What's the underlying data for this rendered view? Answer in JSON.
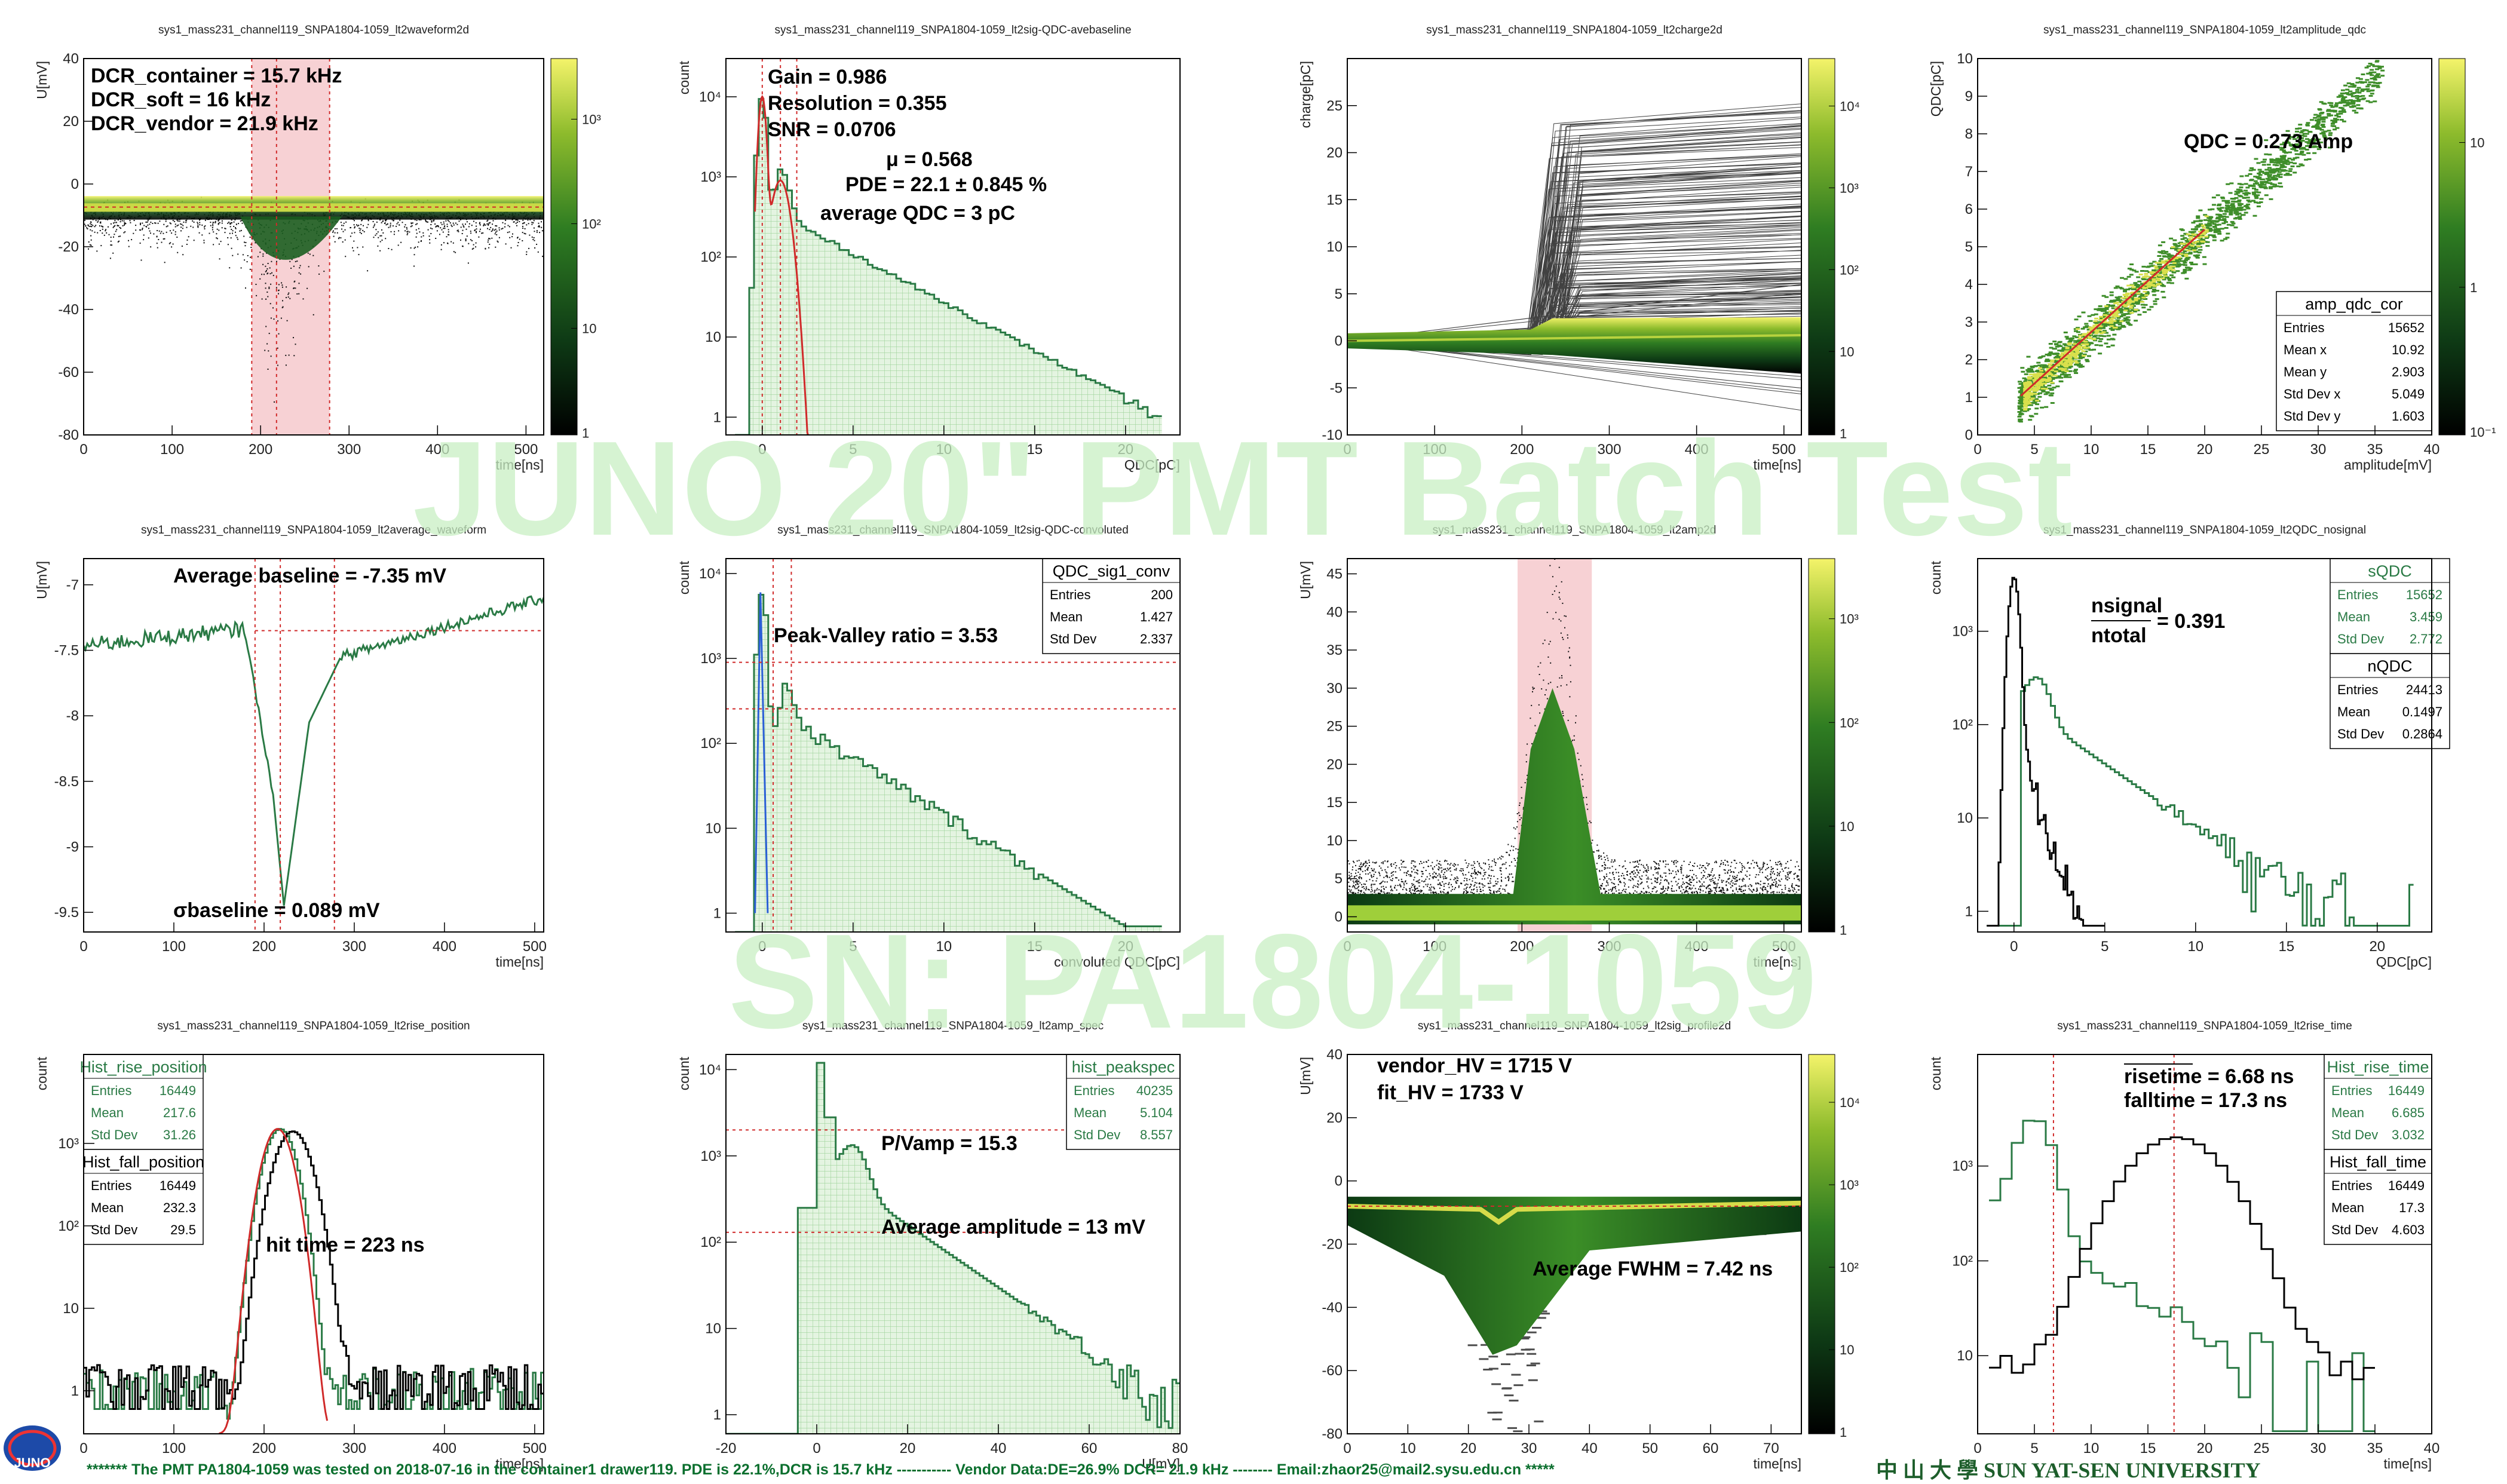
{
  "watermark": {
    "line1": "JUNO 20\" PMT Batch Test",
    "line2": "SN: PA1804-1059"
  },
  "footer": {
    "text": "******* The PMT PA1804-1059 was tested on 2018-07-16 in the container1 drawer119. PDE is  22.1%,DCR is 15.7 kHz ----------- Vendor Data:DE=26.9% DCR= 21.9 kHz  --------  Email:zhaor25@mail2.sysu.edu.cn *****",
    "university": "中 山 大 學  SUN YAT-SEN UNIVERSITY",
    "logo": "JUNO"
  },
  "colors": {
    "green": "#2a7a45",
    "red": "#d02a2a",
    "band": "#f6c9cc",
    "hist_fill": "#cfeacb"
  },
  "chart_data": [
    {
      "id": "p1",
      "type": "heatmap",
      "title": "sys1_mass231_channel119_SNPA1804-1059_lt2waveform2d",
      "xlabel": "time[ns]",
      "ylabel": "U[mV]",
      "xlim": [
        0,
        520
      ],
      "ylim": [
        -80,
        40
      ],
      "xticks": [
        0,
        100,
        200,
        300,
        400,
        500
      ],
      "yticks": [
        -80,
        -60,
        -40,
        -20,
        0,
        20,
        40
      ],
      "colorbar": [
        "1",
        "10",
        "10²",
        "10³"
      ],
      "annotations": [
        "DCR_container =  15.7 kHz",
        "DCR_soft =     16 kHz",
        "DCR_vendor =  21.9 kHz"
      ],
      "bands": [
        [
          190,
          278
        ]
      ],
      "vlines": [
        218
      ],
      "baseline": -7.35,
      "dip": {
        "center": 222,
        "depth": -38
      }
    },
    {
      "id": "p2",
      "type": "histogram",
      "title": "sys1_mass231_channel119_SNPA1804-1059_lt2sig-QDC-avebaseline",
      "xlabel": "QDC[pC]",
      "ylabel": "count",
      "xlim": [
        -2,
        23
      ],
      "ylim_log": [
        0.6,
        30000
      ],
      "log": true,
      "xticks": [
        0,
        5,
        10,
        15,
        20
      ],
      "yticks": [
        "1",
        "10",
        "10²",
        "10³",
        "10⁴"
      ],
      "annotations": [
        "Gain = 0.986",
        "Resolution = 0.355",
        "SNR = 0.0706",
        "μ = 0.568",
        "PDE =  22.1 ± 0.845 %",
        "average QDC =     3 pC"
      ],
      "pedestal_peak": 10000,
      "spe_peak": 1.0,
      "spe_height": 900,
      "vlines": [
        0,
        1.0,
        1.9
      ]
    },
    {
      "id": "p3",
      "type": "heatmap",
      "title": "sys1_mass231_channel119_SNPA1804-1059_lt2charge2d",
      "xlabel": "time[ns]",
      "ylabel": "charge[pC]",
      "xlim": [
        0,
        520
      ],
      "ylim": [
        -10,
        30
      ],
      "xticks": [
        0,
        100,
        200,
        300,
        400,
        500
      ],
      "yticks": [
        -10,
        -5,
        0,
        5,
        10,
        15,
        20,
        25
      ],
      "colorbar": [
        "1",
        "10",
        "10²",
        "10³",
        "10⁴"
      ]
    },
    {
      "id": "p4",
      "type": "scatter",
      "title": "sys1_mass231_channel119_SNPA1804-1059_lt2amplitude_qdc",
      "xlabel": "amplitude[mV]",
      "ylabel": "QDC[pC]",
      "xlim": [
        0,
        40
      ],
      "ylim": [
        0,
        10
      ],
      "xticks": [
        0,
        5,
        10,
        15,
        20,
        25,
        30,
        35,
        40
      ],
      "yticks": [
        0,
        1,
        2,
        3,
        4,
        5,
        6,
        7,
        8,
        9,
        10
      ],
      "colorbar": [
        "10⁻¹",
        "1",
        "10"
      ],
      "annotations": [
        "QDC = 0.273 Amp"
      ],
      "fit": {
        "slope": 0.273,
        "x0": 3.8,
        "x1": 20
      },
      "stats": {
        "title": "amp_qdc_cor",
        "rows": [
          [
            "Entries",
            "15652"
          ],
          [
            "Mean x",
            "10.92"
          ],
          [
            "Mean y",
            "2.903"
          ],
          [
            "Std Dev x",
            "5.049"
          ],
          [
            "Std Dev y",
            "1.603"
          ]
        ]
      }
    },
    {
      "id": "p5",
      "type": "line",
      "title": "sys1_mass231_channel119_SNPA1804-1059_lt2average_waveform",
      "xlabel": "time[ns]",
      "ylabel": "U[mV]",
      "xlim": [
        0,
        510
      ],
      "ylim": [
        -9.65,
        -6.8
      ],
      "xticks": [
        0,
        100,
        200,
        300,
        400,
        500
      ],
      "yticks": [
        -9.5,
        -9,
        -8.5,
        -8,
        -7.5,
        -7
      ],
      "ytick_labels": [
        "-9.5",
        "-9",
        "-8.5",
        "-8",
        "-7.5",
        "-7"
      ],
      "annotations": [
        "Average baseline = -7.35 mV",
        "σbaseline = 0.089 mV"
      ],
      "baseline": -7.35,
      "min": -9.45,
      "min_at": 222,
      "vlines": [
        190,
        218,
        278
      ]
    },
    {
      "id": "p6",
      "type": "histogram",
      "title": "sys1_mass231_channel119_SNPA1804-1059_lt2sig-QDC-convoluted",
      "xlabel": "convoluted QDC[pC]",
      "ylabel": "count",
      "xlim": [
        -2,
        23
      ],
      "ylim_log": [
        0.6,
        15000
      ],
      "log": true,
      "xticks": [
        0,
        5,
        10,
        15,
        20
      ],
      "yticks": [
        "1",
        "10",
        "10²",
        "10³",
        "10⁴"
      ],
      "annotations": [
        "Peak-Valley ratio =  3.53"
      ],
      "hlines": [
        900,
        255
      ],
      "stats": {
        "title": "QDC_sig1_conv",
        "rows": [
          [
            "Entries",
            "200"
          ],
          [
            "Mean",
            "1.427"
          ],
          [
            "Std Dev",
            "2.337"
          ]
        ]
      }
    },
    {
      "id": "p7",
      "type": "heatmap",
      "title": "sys1_mass231_channel119_SNPA1804-1059_lt2amp2d",
      "xlabel": "time[ns]",
      "ylabel": "U[mV]",
      "xlim": [
        0,
        520
      ],
      "ylim": [
        -2,
        47
      ],
      "xticks": [
        0,
        100,
        200,
        300,
        400,
        500
      ],
      "yticks": [
        0,
        5,
        10,
        15,
        20,
        25,
        30,
        35,
        40,
        45
      ],
      "colorbar": [
        "1",
        "10",
        "10²",
        "10³"
      ],
      "bands": [
        [
          195,
          280
        ]
      ]
    },
    {
      "id": "p8",
      "type": "histogram",
      "title": "sys1_mass231_channel119_SNPA1804-1059_lt2QDC_nosignal",
      "xlabel": "QDC[pC]",
      "ylabel": "count",
      "xlim": [
        -2,
        23
      ],
      "ylim_log": [
        0.6,
        6000
      ],
      "log": true,
      "xticks": [
        0,
        5,
        10,
        15,
        20
      ],
      "yticks": [
        "1",
        "10",
        "10²",
        "10³"
      ],
      "annotations": [
        "nsignal",
        "ntotal",
        "= 0.391"
      ],
      "stats": [
        {
          "title": "sQDC",
          "green": true,
          "rows": [
            [
              "Entries",
              "15652"
            ],
            [
              "Mean",
              "3.459"
            ],
            [
              "Std Dev",
              "2.772"
            ]
          ]
        },
        {
          "title": "nQDC",
          "green": false,
          "rows": [
            [
              "Entries",
              "24413"
            ],
            [
              "Mean",
              "0.1497"
            ],
            [
              "Std Dev",
              "0.2864"
            ]
          ]
        }
      ]
    },
    {
      "id": "p9",
      "type": "histogram",
      "title": "sys1_mass231_channel119_SNPA1804-1059_lt2rise_position",
      "xlabel": "time[ns]",
      "ylabel": "count",
      "xlim": [
        0,
        510
      ],
      "ylim_log": [
        0.3,
        12000
      ],
      "log": true,
      "xticks": [
        0,
        100,
        200,
        300,
        400,
        500
      ],
      "yticks": [
        "1",
        "10",
        "10²",
        "10³"
      ],
      "annotations": [
        "hit time =    223 ns"
      ],
      "stats": [
        {
          "title": "Hist_rise_position",
          "green": true,
          "rows": [
            [
              "Entries",
              "16449"
            ],
            [
              "Mean",
              "217.6"
            ],
            [
              "Std Dev",
              "31.26"
            ]
          ]
        },
        {
          "title": "Hist_fall_position",
          "green": false,
          "rows": [
            [
              "Entries",
              "16449"
            ],
            [
              "Mean",
              "232.3"
            ],
            [
              "Std Dev",
              "29.5"
            ]
          ]
        }
      ]
    },
    {
      "id": "p10",
      "type": "histogram",
      "title": "sys1_mass231_channel119_SNPA1804-1059_lt2amp_spec",
      "xlabel": "U[mV]",
      "ylabel": "count",
      "xlim": [
        -20,
        80
      ],
      "ylim_log": [
        0.6,
        15000
      ],
      "log": true,
      "xticks": [
        -20,
        0,
        20,
        40,
        60,
        80
      ],
      "yticks": [
        "1",
        "10",
        "10²",
        "10³",
        "10⁴"
      ],
      "annotations": [
        "P/Vamp =  15.3",
        "Average amplitude =     13 mV"
      ],
      "hlines": [
        2000,
        130
      ],
      "stats": {
        "title": "hist_peakspec",
        "green": true,
        "rows": [
          [
            "Entries",
            "40235"
          ],
          [
            "Mean",
            "5.104"
          ],
          [
            "Std Dev",
            "8.557"
          ]
        ]
      }
    },
    {
      "id": "p11",
      "type": "heatmap",
      "title": "sys1_mass231_channel119_SNPA1804-1059_lt2sig_profile2d",
      "xlabel": "time[ns]",
      "ylabel": "U[mV]",
      "xlim": [
        0,
        75
      ],
      "ylim": [
        -80,
        40
      ],
      "xticks": [
        0,
        10,
        20,
        30,
        40,
        50,
        60,
        70
      ],
      "yticks": [
        -80,
        -60,
        -40,
        -20,
        0,
        20,
        40
      ],
      "colorbar": [
        "1",
        "10",
        "10²",
        "10³",
        "10⁴"
      ],
      "annotations": [
        "vendor_HV = 1715 V",
        "fit_HV = 1733 V",
        "Average FWHM =  7.42 ns"
      ]
    },
    {
      "id": "p12",
      "type": "histogram",
      "title": "sys1_mass231_channel119_SNPA1804-1059_lt2rise_time",
      "xlabel": "time[ns]",
      "ylabel": "count",
      "xlim": [
        0,
        40
      ],
      "ylim_log": [
        1.5,
        15000
      ],
      "log": true,
      "xticks": [
        0,
        5,
        10,
        15,
        20,
        25,
        30,
        35,
        40
      ],
      "yticks": [
        "10",
        "10²",
        "10³"
      ],
      "annotations": [
        "risetime =  6.68 ns",
        "falltime =  17.3 ns"
      ],
      "vlines": [
        6.68,
        17.3
      ],
      "stats": [
        {
          "title": "Hist_rise_time",
          "green": true,
          "rows": [
            [
              "Entries",
              "16449"
            ],
            [
              "Mean",
              "6.685"
            ],
            [
              "Std Dev",
              "3.032"
            ]
          ]
        },
        {
          "title": "Hist_fall_time",
          "green": false,
          "rows": [
            [
              "Entries",
              "16449"
            ],
            [
              "Mean",
              "17.3"
            ],
            [
              "Std Dev",
              "4.603"
            ]
          ]
        }
      ]
    }
  ]
}
